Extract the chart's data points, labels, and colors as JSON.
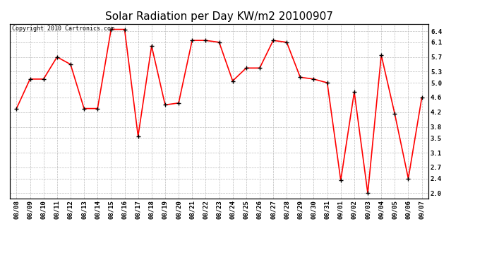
{
  "title": "Solar Radiation per Day KW/m2 20100907",
  "copyright_text": "Copyright 2010 Cartronics.com",
  "dates": [
    "08/08",
    "08/09",
    "08/10",
    "08/11",
    "08/12",
    "08/13",
    "08/14",
    "08/15",
    "08/16",
    "08/17",
    "08/18",
    "08/19",
    "08/20",
    "08/21",
    "08/22",
    "08/23",
    "08/24",
    "08/25",
    "08/26",
    "08/27",
    "08/28",
    "08/29",
    "08/30",
    "08/31",
    "09/01",
    "09/02",
    "09/03",
    "09/04",
    "09/05",
    "09/06",
    "09/07"
  ],
  "values": [
    4.3,
    5.1,
    5.1,
    5.7,
    5.5,
    4.3,
    4.3,
    6.45,
    6.45,
    3.55,
    6.0,
    4.4,
    4.45,
    6.15,
    6.15,
    6.1,
    5.05,
    5.4,
    5.4,
    6.15,
    6.1,
    5.15,
    5.1,
    5.0,
    2.35,
    4.75,
    2.0,
    5.75,
    4.15,
    2.4,
    4.6
  ],
  "line_color": "#ff0000",
  "marker_color": "#000000",
  "bg_color": "#ffffff",
  "plot_bg_color": "#ffffff",
  "grid_color": "#bbbbbb",
  "yticks": [
    2.0,
    2.4,
    2.7,
    3.1,
    3.5,
    3.8,
    4.2,
    4.6,
    5.0,
    5.3,
    5.7,
    6.1,
    6.4
  ],
  "ylim": [
    1.85,
    6.6
  ],
  "title_fontsize": 11,
  "tick_fontsize": 6.5,
  "copyright_fontsize": 6
}
